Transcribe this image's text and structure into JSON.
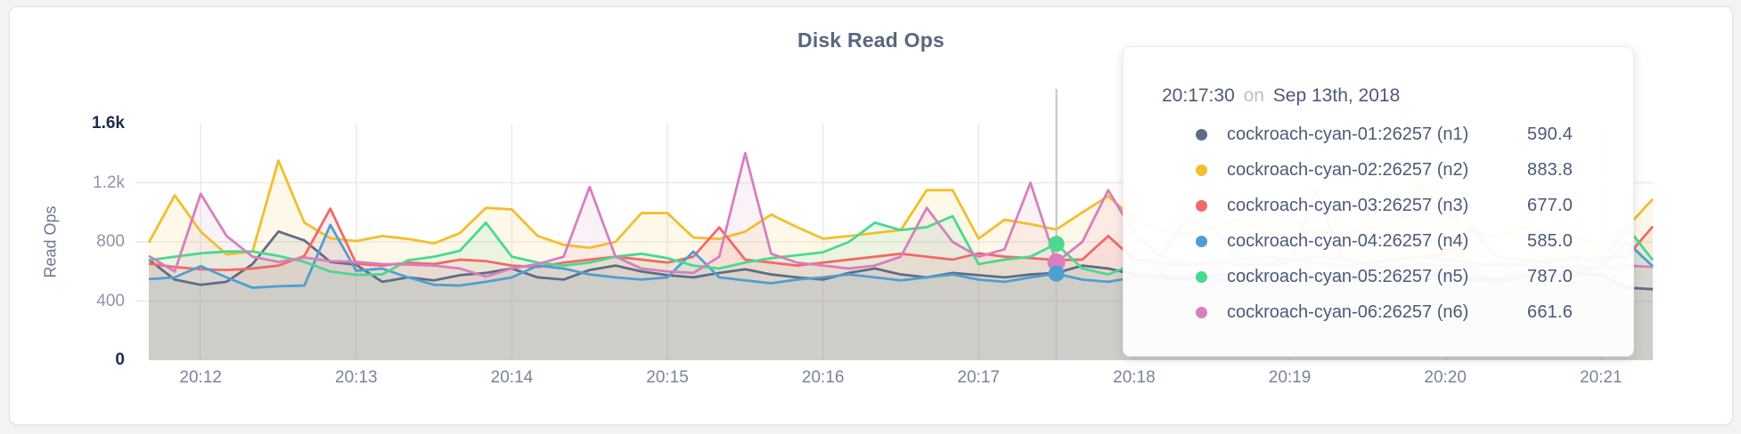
{
  "page": {
    "background": "#f4f3f1",
    "card_background": "#ffffff"
  },
  "chart": {
    "title": "Disk Read Ops",
    "y_axis_label": "Read Ops",
    "y_ticks": [
      {
        "label": "0",
        "value": 0,
        "emphasized": true
      },
      {
        "label": "400",
        "value": 400,
        "emphasized": false
      },
      {
        "label": "800",
        "value": 800,
        "emphasized": false
      },
      {
        "label": "1.2k",
        "value": 1200,
        "emphasized": false
      },
      {
        "label": "1.6k",
        "value": 1600,
        "emphasized": true
      }
    ],
    "x_ticks": [
      {
        "label": "20:12",
        "index": 2
      },
      {
        "label": "20:13",
        "index": 8
      },
      {
        "label": "20:14",
        "index": 14
      },
      {
        "label": "20:15",
        "index": 20
      },
      {
        "label": "20:16",
        "index": 26
      },
      {
        "label": "20:17",
        "index": 32
      },
      {
        "label": "20:18",
        "index": 38
      },
      {
        "label": "20:19",
        "index": 44
      },
      {
        "label": "20:20",
        "index": 50
      },
      {
        "label": "20:21",
        "index": 56
      }
    ],
    "grid_color": "#eceae7",
    "hover_line_color": "#c2c2c2"
  },
  "tooltip": {
    "time": "20:17:30",
    "on_word": "on",
    "date": "Sep 13th, 2018",
    "rows": [
      {
        "name": "cockroach-cyan-01:26257 (n1)",
        "value": "590.4",
        "color": "#5F6C87"
      },
      {
        "name": "cockroach-cyan-02:26257 (n2)",
        "value": "883.8",
        "color": "#F2BE2C"
      },
      {
        "name": "cockroach-cyan-03:26257 (n3)",
        "value": "677.0",
        "color": "#F16969"
      },
      {
        "name": "cockroach-cyan-04:26257 (n4)",
        "value": "585.0",
        "color": "#4E9FD1"
      },
      {
        "name": "cockroach-cyan-05:26257 (n5)",
        "value": "787.0",
        "color": "#49D990"
      },
      {
        "name": "cockroach-cyan-06:26257 (n6)",
        "value": "661.6",
        "color": "#D77FBF"
      }
    ]
  },
  "chart_data": {
    "type": "area",
    "title": "Disk Read Ops",
    "ylabel": "Read Ops",
    "ylim": [
      0,
      1600
    ],
    "grid": true,
    "x_start": "20:11:40",
    "x_step_seconds": 10,
    "x_tick_labels": [
      "20:12",
      "20:13",
      "20:14",
      "20:15",
      "20:16",
      "20:17",
      "20:18",
      "20:19",
      "20:20",
      "20:21"
    ],
    "hover": {
      "index": 35,
      "time": "20:17:30",
      "dot_series": [
        "n5",
        "n6",
        "n4"
      ]
    },
    "series": [
      {
        "name": "cockroach-cyan-01:26257 (n1)",
        "short": "n1",
        "color": "#5F6C87",
        "hover_value": 590.4,
        "values": [
          680,
          545,
          510,
          530,
          650,
          870,
          810,
          665,
          645,
          530,
          560,
          540,
          575,
          590,
          620,
          560,
          545,
          610,
          640,
          600,
          575,
          560,
          590,
          615,
          580,
          560,
          545,
          590,
          620,
          580,
          560,
          590,
          575,
          560,
          580,
          590.4,
          640,
          620,
          580,
          560,
          545,
          570,
          590,
          575,
          560,
          580,
          560,
          545,
          570,
          590,
          575,
          560,
          545,
          570,
          560,
          590,
          575,
          490,
          480
        ]
      },
      {
        "name": "cockroach-cyan-02:26257 (n2)",
        "short": "n2",
        "color": "#F2BE2C",
        "hover_value": 883.8,
        "values": [
          795,
          1115,
          870,
          715,
          735,
          1350,
          930,
          825,
          805,
          840,
          820,
          790,
          860,
          1030,
          1020,
          840,
          780,
          760,
          800,
          995,
          995,
          830,
          820,
          870,
          985,
          900,
          822,
          840,
          860,
          880,
          1150,
          1150,
          822,
          950,
          920,
          883.8,
          1000,
          1110,
          950,
          880,
          850,
          900,
          950,
          870,
          830,
          880,
          840,
          900,
          860,
          1200,
          1000,
          870,
          830,
          900,
          860,
          830,
          790,
          900,
          1090
        ]
      },
      {
        "name": "cockroach-cyan-03:26257 (n3)",
        "short": "n3",
        "color": "#F16969",
        "hover_value": 677.0,
        "values": [
          653,
          630,
          615,
          610,
          620,
          640,
          705,
          1025,
          653,
          640,
          660,
          650,
          680,
          670,
          640,
          630,
          660,
          680,
          700,
          680,
          660,
          700,
          898,
          680,
          660,
          640,
          660,
          680,
          700,
          720,
          700,
          680,
          723,
          700,
          690,
          677,
          680,
          840,
          680,
          660,
          640,
          660,
          680,
          700,
          680,
          660,
          640,
          660,
          680,
          700,
          720,
          900,
          700,
          680,
          660,
          680,
          700,
          700,
          905
        ]
      },
      {
        "name": "cockroach-cyan-04:26257 (n4)",
        "short": "n4",
        "color": "#4E9FD1",
        "hover_value": 585.0,
        "values": [
          548,
          560,
          636,
          560,
          490,
          500,
          505,
          915,
          605,
          620,
          560,
          510,
          505,
          530,
          560,
          640,
          620,
          580,
          560,
          545,
          560,
          735,
          560,
          540,
          520,
          545,
          560,
          580,
          560,
          540,
          560,
          580,
          545,
          530,
          560,
          585,
          545,
          530,
          560,
          580,
          560,
          545,
          530,
          560,
          580,
          560,
          545,
          530,
          560,
          580,
          560,
          545,
          530,
          560,
          580,
          600,
          620,
          800,
          635
        ]
      },
      {
        "name": "cockroach-cyan-05:26257 (n5)",
        "short": "n5",
        "color": "#49D990",
        "hover_value": 787.0,
        "values": [
          676,
          700,
          723,
          735,
          735,
          705,
          665,
          600,
          577,
          580,
          676,
          700,
          740,
          930,
          700,
          660,
          640,
          660,
          700,
          720,
          690,
          640,
          620,
          660,
          690,
          710,
          730,
          800,
          930,
          880,
          900,
          974,
          650,
          680,
          700,
          787,
          620,
          580,
          650,
          700,
          950,
          900,
          700,
          660,
          680,
          700,
          680,
          660,
          680,
          700,
          680,
          660,
          640,
          660,
          680,
          700,
          660,
          900,
          677
        ]
      },
      {
        "name": "cockroach-cyan-06:26257 (n6)",
        "short": "n6",
        "color": "#D77FBF",
        "hover_value": 661.6,
        "values": [
          705,
          600,
          1125,
          840,
          700,
          665,
          694,
          670,
          665,
          650,
          647,
          640,
          620,
          566,
          620,
          650,
          700,
          1172,
          700,
          620,
          600,
          590,
          700,
          1400,
          720,
          660,
          640,
          620,
          640,
          700,
          1030,
          800,
          700,
          750,
          1200,
          661.6,
          800,
          1150,
          857,
          700,
          650,
          660,
          650,
          640,
          660,
          1150,
          700,
          640,
          630,
          650,
          640,
          630,
          650,
          640,
          630,
          640,
          620,
          640,
          630
        ]
      }
    ]
  }
}
